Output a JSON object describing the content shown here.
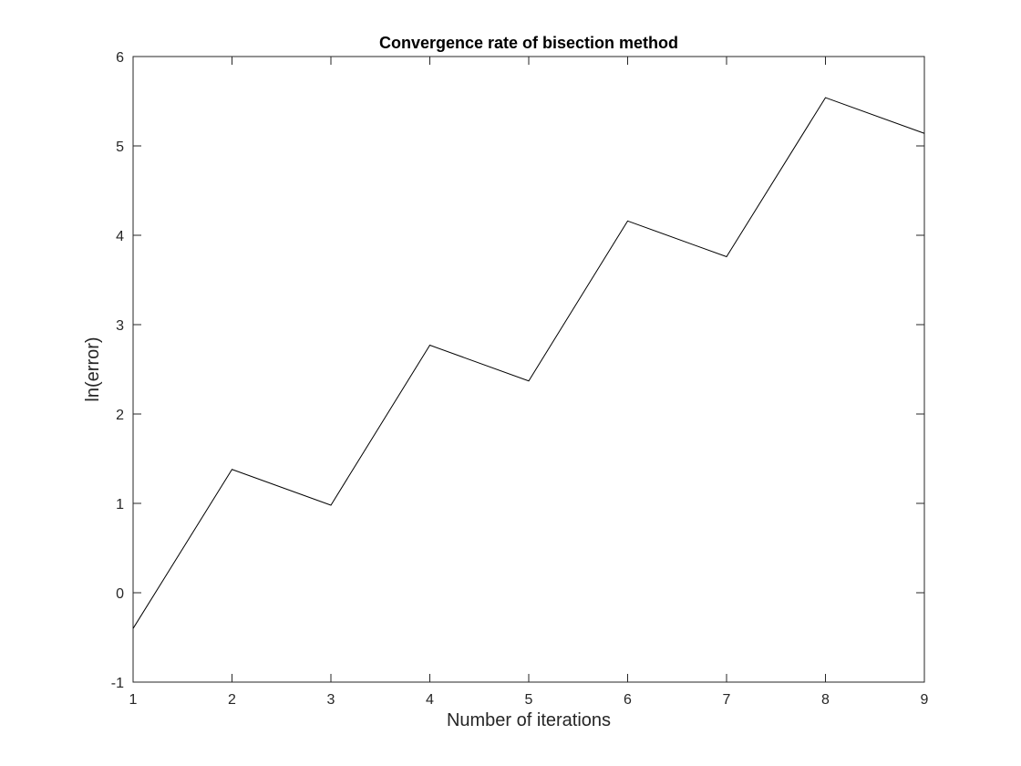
{
  "chart_data": {
    "type": "line",
    "title": "Convergence rate of bisection method",
    "xlabel": "Number of iterations",
    "ylabel": "ln(error)",
    "xlim": [
      1,
      9
    ],
    "ylim": [
      -1,
      6
    ],
    "x_ticks": [
      "1",
      "2",
      "3",
      "4",
      "5",
      "6",
      "7",
      "8",
      "9"
    ],
    "y_ticks": [
      "-1",
      "0",
      "1",
      "2",
      "3",
      "4",
      "5",
      "6"
    ],
    "grid": false,
    "series": [
      {
        "x": [
          1,
          2,
          3,
          4,
          5,
          6,
          7,
          8,
          9
        ],
        "y": [
          -0.4,
          1.38,
          0.98,
          2.77,
          2.37,
          4.16,
          3.76,
          5.54,
          5.14
        ],
        "color": "#000000"
      }
    ]
  }
}
